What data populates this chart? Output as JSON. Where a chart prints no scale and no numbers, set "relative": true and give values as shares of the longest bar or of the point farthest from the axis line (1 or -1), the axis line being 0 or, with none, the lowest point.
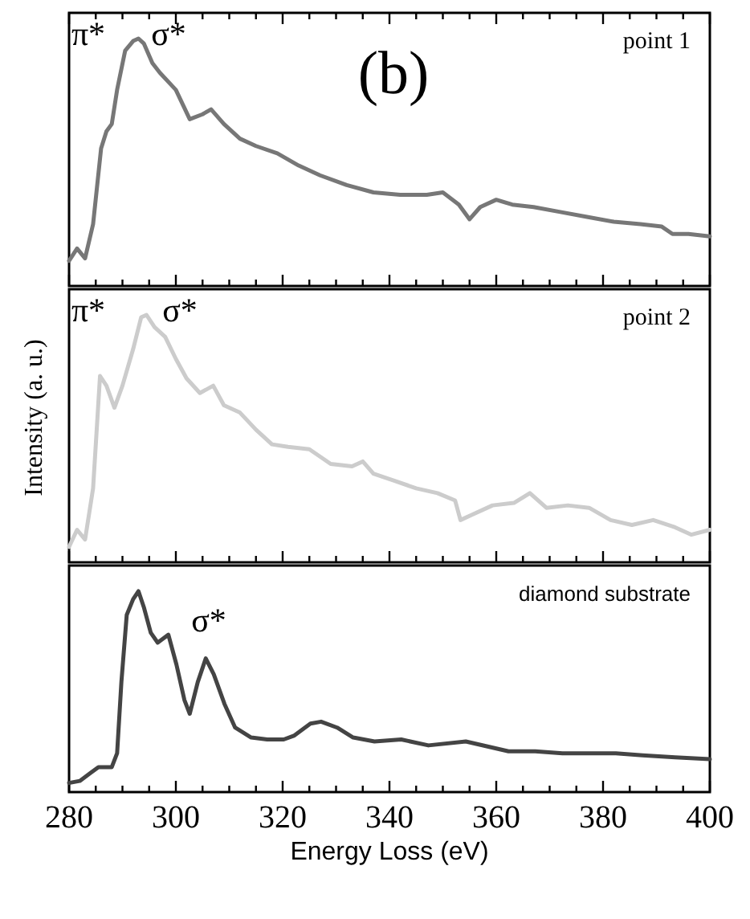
{
  "chart_data": [
    {
      "type": "line",
      "title": "(b)",
      "relative": true,
      "tick_labels": false,
      "xlim": [
        280,
        400
      ],
      "xticks": [
        280,
        {
          "value": 285,
          "label": null
        },
        {
          "value": 290,
          "label": null
        },
        {
          "value": 295,
          "label": null
        },
        300,
        {
          "value": 305,
          "label": null
        },
        {
          "value": 310,
          "label": null
        },
        {
          "value": 315,
          "label": null
        },
        320,
        {
          "value": 325,
          "label": null
        },
        {
          "value": 330,
          "label": null
        },
        {
          "value": 335,
          "label": null
        },
        340,
        {
          "value": 345,
          "label": null
        },
        {
          "value": 350,
          "label": null
        },
        {
          "value": 355,
          "label": null
        },
        360,
        {
          "value": 365,
          "label": null
        },
        {
          "value": 370,
          "label": null
        },
        {
          "value": 375,
          "label": null
        },
        380,
        {
          "value": 385,
          "label": null
        },
        {
          "value": 390,
          "label": null
        },
        {
          "value": 395,
          "label": null
        },
        400
      ],
      "annotations": [
        "π*",
        "σ*"
      ],
      "series": [
        {
          "name": "point 1",
          "color": "#777777",
          "x": [
            280,
            281.5,
            283,
            284.5,
            286,
            287,
            288,
            289,
            290.5,
            292,
            293,
            294,
            295.6,
            297,
            300,
            302.6,
            305,
            306.6,
            309,
            312,
            315,
            319,
            323,
            327,
            332,
            337,
            342,
            347,
            350,
            353,
            355,
            357,
            360,
            363,
            367,
            372,
            377,
            382,
            387,
            391,
            393,
            396,
            400
          ],
          "values": [
            0.09,
            0.14,
            0.1,
            0.24,
            0.55,
            0.62,
            0.65,
            0.79,
            0.95,
            0.99,
            1.0,
            0.98,
            0.9,
            0.86,
            0.79,
            0.67,
            0.69,
            0.71,
            0.65,
            0.59,
            0.56,
            0.53,
            0.48,
            0.44,
            0.4,
            0.37,
            0.36,
            0.36,
            0.37,
            0.32,
            0.26,
            0.31,
            0.34,
            0.32,
            0.31,
            0.29,
            0.27,
            0.25,
            0.24,
            0.23,
            0.2,
            0.2,
            0.19
          ]
        }
      ]
    },
    {
      "type": "line",
      "ylabel": "Intensity (a. u.)",
      "relative": true,
      "tick_labels": false,
      "xlim": [
        280,
        400
      ],
      "xticks": [
        280,
        {
          "value": 285,
          "label": null
        },
        {
          "value": 290,
          "label": null
        },
        {
          "value": 295,
          "label": null
        },
        300,
        {
          "value": 305,
          "label": null
        },
        {
          "value": 310,
          "label": null
        },
        {
          "value": 315,
          "label": null
        },
        320,
        {
          "value": 325,
          "label": null
        },
        {
          "value": 330,
          "label": null
        },
        {
          "value": 335,
          "label": null
        },
        340,
        {
          "value": 345,
          "label": null
        },
        {
          "value": 350,
          "label": null
        },
        {
          "value": 355,
          "label": null
        },
        360,
        {
          "value": 365,
          "label": null
        },
        {
          "value": 370,
          "label": null
        },
        {
          "value": 375,
          "label": null
        },
        380,
        {
          "value": 385,
          "label": null
        },
        {
          "value": 390,
          "label": null
        },
        {
          "value": 395,
          "label": null
        },
        400
      ],
      "annotations": [
        "π*",
        "σ*"
      ],
      "series": [
        {
          "name": "point 2",
          "color": "#cccccc",
          "x": [
            280,
            281.5,
            283,
            284.5,
            285.8,
            287,
            288.5,
            290,
            292,
            293.5,
            294.5,
            296,
            298,
            300,
            302,
            304.5,
            307,
            309,
            312,
            315,
            318,
            321,
            325,
            329,
            333,
            335,
            337,
            341,
            345,
            349,
            352.3,
            353.3,
            355.3,
            359.3,
            363.3,
            366.3,
            369.4,
            373.4,
            377.4,
            381.4,
            385.4,
            389.4,
            393.5,
            396.5,
            400
          ],
          "values": [
            0.05,
            0.12,
            0.08,
            0.29,
            0.75,
            0.71,
            0.62,
            0.71,
            0.86,
            0.99,
            1.0,
            0.95,
            0.91,
            0.82,
            0.74,
            0.68,
            0.71,
            0.63,
            0.6,
            0.53,
            0.47,
            0.46,
            0.45,
            0.39,
            0.38,
            0.4,
            0.35,
            0.32,
            0.29,
            0.27,
            0.24,
            0.16,
            0.18,
            0.22,
            0.23,
            0.27,
            0.21,
            0.22,
            0.21,
            0.16,
            0.14,
            0.16,
            0.13,
            0.1,
            0.12
          ]
        }
      ]
    },
    {
      "type": "line",
      "xlabel": "Energy Loss (eV)",
      "relative": true,
      "tick_labels": "x",
      "xlim": [
        280,
        400
      ],
      "xticks": [
        280,
        {
          "value": 285,
          "label": null
        },
        {
          "value": 290,
          "label": null
        },
        {
          "value": 295,
          "label": null
        },
        300,
        {
          "value": 305,
          "label": null
        },
        {
          "value": 310,
          "label": null
        },
        {
          "value": 315,
          "label": null
        },
        320,
        {
          "value": 325,
          "label": null
        },
        {
          "value": 330,
          "label": null
        },
        {
          "value": 335,
          "label": null
        },
        340,
        {
          "value": 345,
          "label": null
        },
        {
          "value": 350,
          "label": null
        },
        {
          "value": 355,
          "label": null
        },
        360,
        {
          "value": 365,
          "label": null
        },
        {
          "value": 370,
          "label": null
        },
        {
          "value": 375,
          "label": null
        },
        380,
        {
          "value": 385,
          "label": null
        },
        {
          "value": 390,
          "label": null
        },
        {
          "value": 395,
          "label": null
        },
        400
      ],
      "annotations": [
        "σ*"
      ],
      "series": [
        {
          "name": "diamond substrate",
          "color": "#444444",
          "x": [
            280,
            282,
            284,
            285.5,
            288,
            289,
            289.8,
            290.8,
            292,
            293,
            294,
            295.3,
            296.6,
            297.6,
            298.6,
            300.1,
            301.6,
            302.6,
            304.1,
            305.6,
            307.1,
            309.1,
            311.1,
            314.1,
            317.1,
            320.2,
            322.2,
            325.2,
            327.2,
            330.2,
            333.2,
            337.2,
            342.2,
            347.3,
            354.3,
            362.3,
            367.3,
            372.4,
            377.4,
            382.4,
            387.4,
            393.5,
            400
          ],
          "values": [
            0.03,
            0.04,
            0.08,
            0.11,
            0.11,
            0.18,
            0.54,
            0.88,
            0.96,
            1.0,
            0.92,
            0.79,
            0.74,
            0.76,
            0.78,
            0.63,
            0.45,
            0.38,
            0.54,
            0.66,
            0.58,
            0.43,
            0.31,
            0.26,
            0.25,
            0.25,
            0.27,
            0.33,
            0.34,
            0.31,
            0.26,
            0.24,
            0.25,
            0.22,
            0.24,
            0.19,
            0.19,
            0.18,
            0.18,
            0.18,
            0.17,
            0.16,
            0.15
          ]
        }
      ]
    }
  ]
}
